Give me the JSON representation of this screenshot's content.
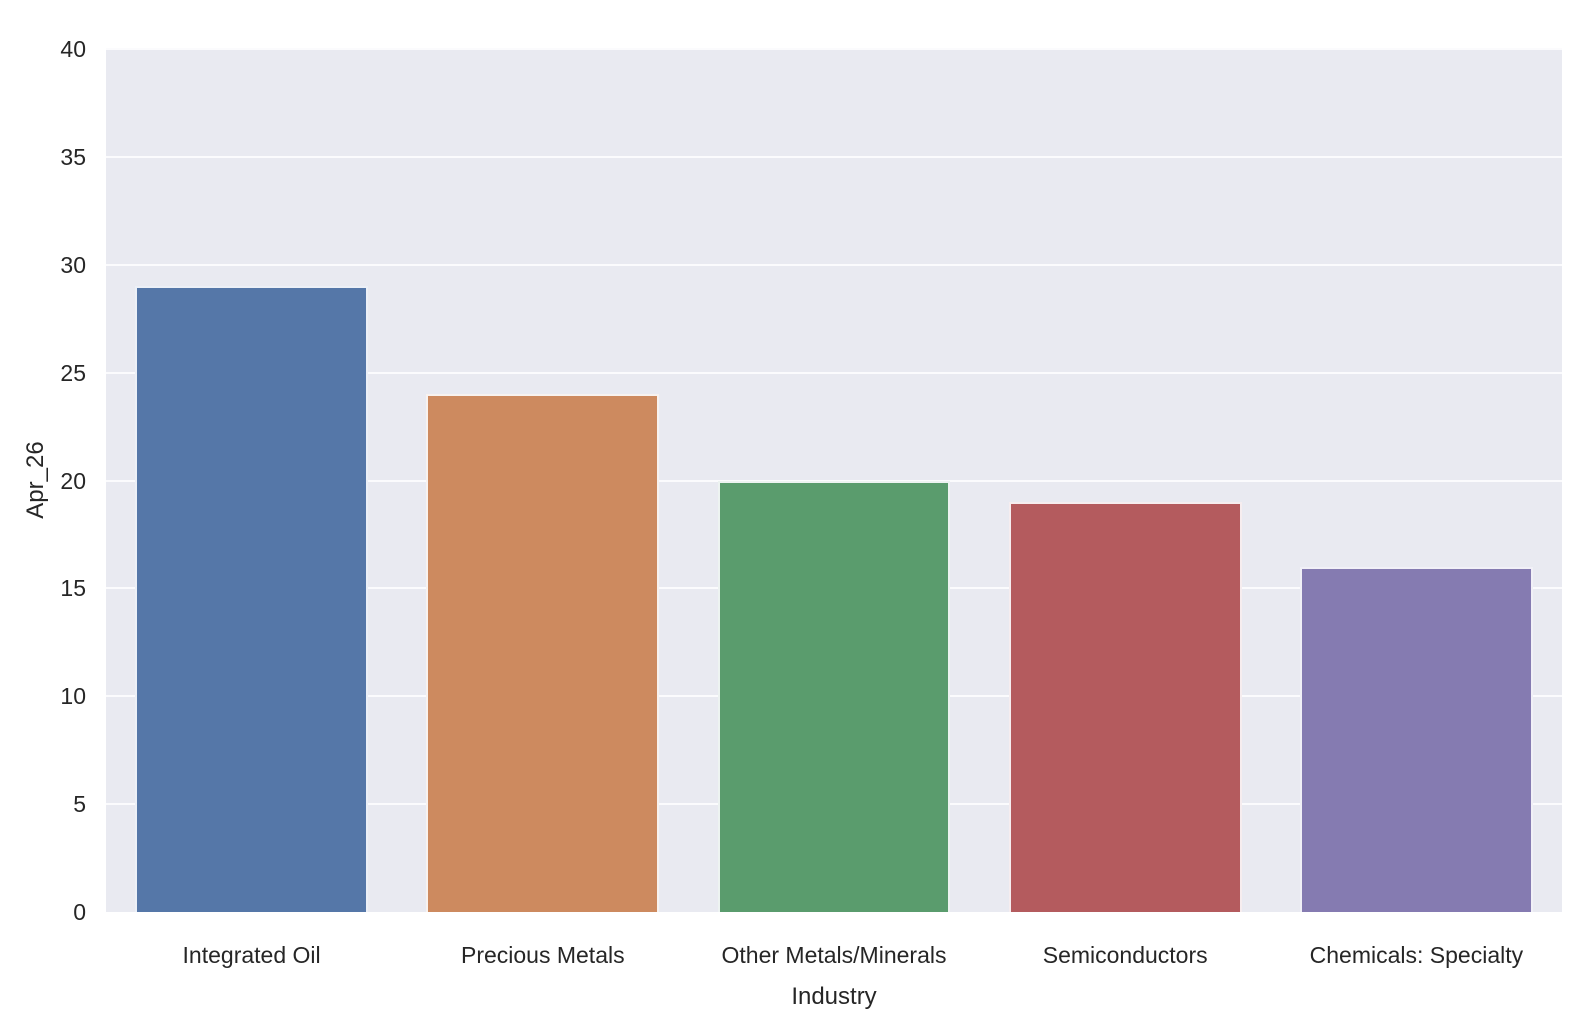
{
  "chart_data": {
    "type": "bar",
    "title": "",
    "xlabel": "Industry",
    "ylabel": "Apr_26",
    "categories": [
      "Integrated Oil",
      "Precious Metals",
      "Other Metals/Minerals",
      "Semiconductors",
      "Chemicals: Specialty"
    ],
    "values": [
      29,
      24,
      20,
      19,
      16
    ],
    "ylim": [
      0,
      40
    ],
    "yticks": [
      0,
      5,
      10,
      15,
      20,
      25,
      30,
      35,
      40
    ],
    "grid": true,
    "legend_position": "none",
    "bar_colors": [
      "#5577a8",
      "#cd8a5f",
      "#5a9c6d",
      "#b45b5e",
      "#857bb1"
    ],
    "plot_background": "#e9eaf1",
    "grid_color": "#fbfbfd",
    "text_color": "#262626",
    "bar_width_fraction": 0.8
  }
}
